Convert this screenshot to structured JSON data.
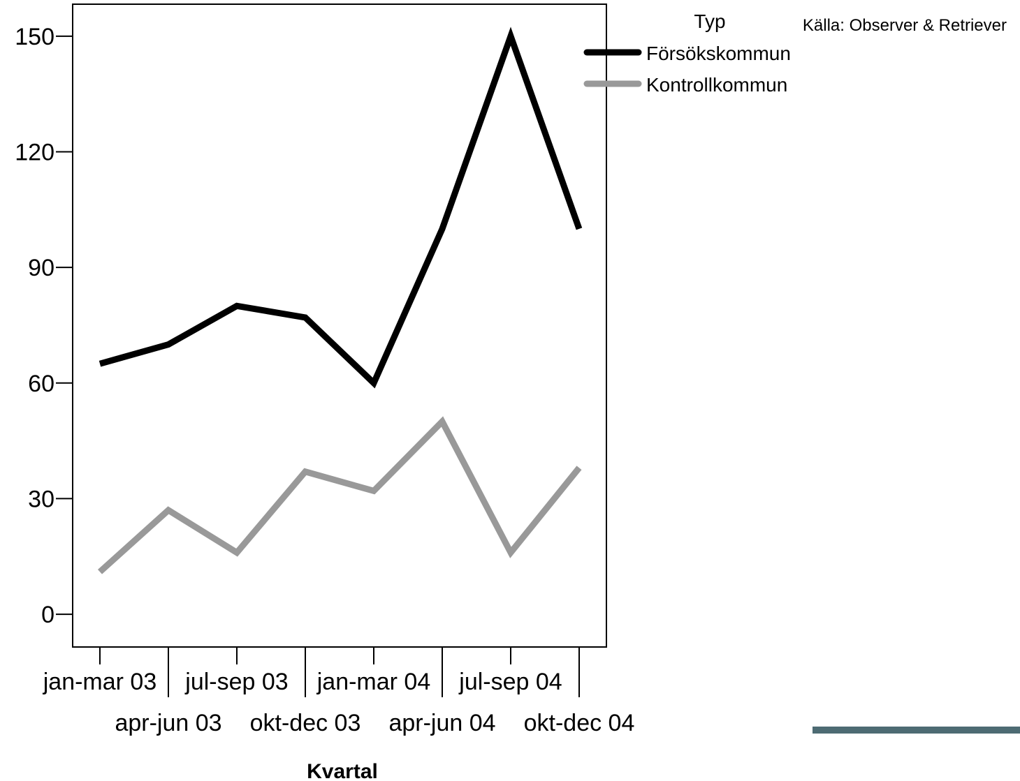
{
  "chart_data": {
    "type": "line",
    "categories": [
      "jan-mar 03",
      "apr-jun 03",
      "jul-sep 03",
      "okt-dec 03",
      "jan-mar 04",
      "apr-jun 04",
      "jul-sep 04",
      "okt-dec 04"
    ],
    "series": [
      {
        "name": "Försökskommun",
        "values": [
          65,
          70,
          80,
          77,
          60,
          100,
          150,
          100
        ],
        "color": "#000000"
      },
      {
        "name": "Kontrollkommun",
        "values": [
          11,
          27,
          16,
          37,
          32,
          50,
          16,
          38
        ],
        "color": "#999999"
      }
    ],
    "yticks": [
      "0",
      "30",
      "60",
      "90",
      "120",
      "150"
    ],
    "ylim": [
      -8.5,
      158.3
    ],
    "xlabel": "Kvartal",
    "ylabel": "",
    "legend": {
      "title": "Typ",
      "position": "right-top"
    },
    "source": "Källa: Observer & Retriever",
    "grid": false
  },
  "decor": {
    "footer_bar_color": "#4d6b73"
  }
}
